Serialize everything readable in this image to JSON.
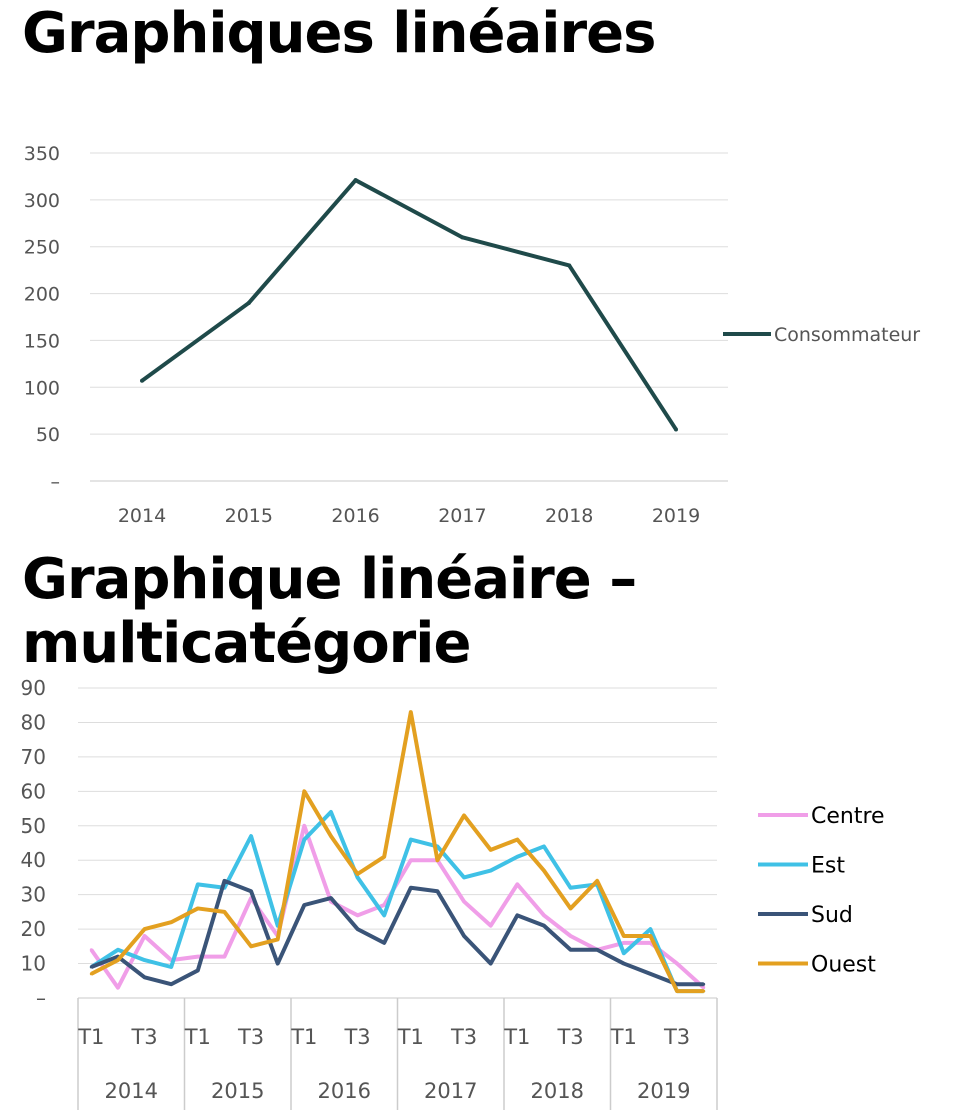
{
  "titles": {
    "chart1": "Graphiques linéaires",
    "chart2": "Graphique linéaire – multicatégorie"
  },
  "chart_data": [
    {
      "type": "line",
      "title": "Graphiques linéaires",
      "categories": [
        "2014",
        "2015",
        "2016",
        "2017",
        "2018",
        "2019"
      ],
      "y_tick_labels": [
        "–",
        "50",
        "100",
        "150",
        "200",
        "250",
        "300",
        "350"
      ],
      "ylim": [
        0,
        350
      ],
      "grid": true,
      "legend_position": "right",
      "series": [
        {
          "name": "Consommateur",
          "color": "#1f4a4a",
          "values": [
            107,
            190,
            321,
            260,
            230,
            55
          ]
        }
      ]
    },
    {
      "type": "line",
      "title": "Graphique linéaire – multicatégorie",
      "quarter_labels": [
        "T1",
        "T3",
        "T1",
        "T3",
        "T1",
        "T3",
        "T1",
        "T3",
        "T1",
        "T3",
        "T1",
        "T3"
      ],
      "years": [
        "2014",
        "2015",
        "2016",
        "2017",
        "2018",
        "2019"
      ],
      "y_tick_labels": [
        "–",
        "10",
        "20",
        "30",
        "40",
        "50",
        "60",
        "70",
        "80",
        "90"
      ],
      "ylim": [
        0,
        90
      ],
      "grid": true,
      "legend_position": "right",
      "series": [
        {
          "name": "Centre",
          "color": "#f09ee8",
          "values": [
            14,
            3,
            18,
            11,
            12,
            12,
            29,
            18,
            50,
            28,
            24,
            27,
            40,
            40,
            28,
            21,
            33,
            24,
            18,
            14,
            16,
            16,
            10,
            3
          ]
        },
        {
          "name": "Est",
          "color": "#3fc1e6",
          "values": [
            9,
            14,
            11,
            9,
            33,
            32,
            47,
            21,
            46,
            54,
            35,
            24,
            46,
            44,
            35,
            37,
            41,
            44,
            32,
            33,
            13,
            20,
            2,
            2
          ]
        },
        {
          "name": "Sud",
          "color": "#3a5478",
          "values": [
            9,
            12,
            6,
            4,
            8,
            34,
            31,
            10,
            27,
            29,
            20,
            16,
            32,
            31,
            18,
            10,
            24,
            21,
            14,
            14,
            10,
            7,
            4,
            4
          ]
        },
        {
          "name": "Ouest",
          "color": "#e3a020",
          "values": [
            7,
            11,
            20,
            22,
            26,
            25,
            15,
            17,
            60,
            47,
            36,
            41,
            83,
            40,
            53,
            43,
            46,
            37,
            26,
            34,
            18,
            18,
            2,
            2
          ]
        }
      ]
    }
  ]
}
